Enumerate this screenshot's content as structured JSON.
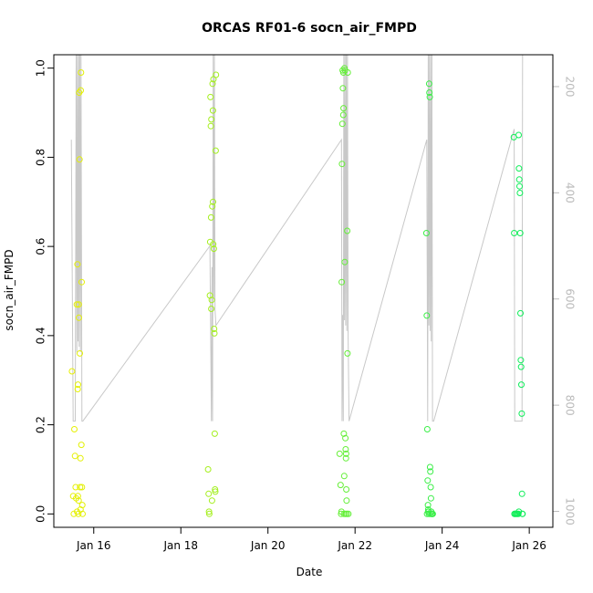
{
  "chart_data": {
    "type": "scatter",
    "title": "ORCAS RF01-6 socn_air_FMPD",
    "xlabel": "Date",
    "ylabel": "socn_air_FMPD",
    "xlim": [
      "2016-01-15T02:00",
      "2016-01-26T13:00"
    ],
    "ylim": [
      -0.03,
      1.03
    ],
    "x_ticks": [
      {
        "date": "2016-01-16T00:00",
        "label": "Jan 16"
      },
      {
        "date": "2016-01-18T00:00",
        "label": "Jan 18"
      },
      {
        "date": "2016-01-20T00:00",
        "label": "Jan 20"
      },
      {
        "date": "2016-01-22T00:00",
        "label": "Jan 22"
      },
      {
        "date": "2016-01-24T00:00",
        "label": "Jan 24"
      },
      {
        "date": "2016-01-26T00:00",
        "label": "Jan 26"
      }
    ],
    "y_ticks": [
      {
        "value": 0.0,
        "label": "0.0"
      },
      {
        "value": 0.2,
        "label": "0.2"
      },
      {
        "value": 0.4,
        "label": "0.4"
      },
      {
        "value": 0.6,
        "label": "0.6"
      },
      {
        "value": 0.8,
        "label": "0.8"
      },
      {
        "value": 1.0,
        "label": "1.0"
      }
    ],
    "secondary_axis": {
      "side": "right",
      "color": "#bbbbbb",
      "range": [
        1030,
        140
      ],
      "ticks": [
        {
          "value": 200,
          "label": "200"
        },
        {
          "value": 400,
          "label": "400"
        },
        {
          "value": 600,
          "label": "600"
        },
        {
          "value": 800,
          "label": "800"
        },
        {
          "value": 1000,
          "label": "1000"
        }
      ]
    },
    "line_color": "#c8c8c8",
    "marker": "open-circle",
    "point_color_scale": [
      "#f0f000",
      "#00ee60"
    ],
    "grid": false,
    "pressure_line": [
      [
        "2016-01-15T11:40",
        300
      ],
      [
        "2016-01-15T12:40",
        830
      ],
      [
        "2016-01-15T13:50",
        830
      ],
      [
        "2016-01-15T14:20",
        140
      ],
      [
        "2016-01-15T14:40",
        700
      ],
      [
        "2016-01-15T15:00",
        140
      ],
      [
        "2016-01-15T15:20",
        680
      ],
      [
        "2016-01-15T15:40",
        140
      ],
      [
        "2016-01-15T16:00",
        690
      ],
      [
        "2016-01-15T16:20",
        140
      ],
      [
        "2016-01-15T16:40",
        700
      ],
      [
        "2016-01-15T17:00",
        140
      ],
      [
        "2016-01-15T17:30",
        830
      ],
      [
        "2016-01-15T18:00",
        830
      ],
      [
        "2016-01-18T16:00",
        500
      ],
      [
        "2016-01-18T16:50",
        830
      ],
      [
        "2016-01-18T17:10",
        540
      ],
      [
        "2016-01-18T17:30",
        830
      ],
      [
        "2016-01-18T17:50",
        140
      ],
      [
        "2016-01-18T18:10",
        600
      ],
      [
        "2016-01-18T18:30",
        140
      ],
      [
        "2016-01-18T18:50",
        620
      ],
      [
        "2016-01-18T19:20",
        650
      ],
      [
        "2016-01-21T16:30",
        300
      ],
      [
        "2016-01-21T16:50",
        830
      ],
      [
        "2016-01-21T17:10",
        630
      ],
      [
        "2016-01-21T17:30",
        830
      ],
      [
        "2016-01-21T17:50",
        140
      ],
      [
        "2016-01-21T18:10",
        640
      ],
      [
        "2016-01-21T18:30",
        140
      ],
      [
        "2016-01-21T18:50",
        650
      ],
      [
        "2016-01-21T19:10",
        140
      ],
      [
        "2016-01-21T19:30",
        660
      ],
      [
        "2016-01-21T19:50",
        140
      ],
      [
        "2016-01-21T20:10",
        670
      ],
      [
        "2016-01-21T20:40",
        830
      ],
      [
        "2016-01-23T15:30",
        300
      ],
      [
        "2016-01-23T16:00",
        830
      ],
      [
        "2016-01-23T16:20",
        140
      ],
      [
        "2016-01-23T16:40",
        650
      ],
      [
        "2016-01-23T17:00",
        140
      ],
      [
        "2016-01-23T17:20",
        660
      ],
      [
        "2016-01-23T17:40",
        140
      ],
      [
        "2016-01-23T18:00",
        680
      ],
      [
        "2016-01-23T18:20",
        140
      ],
      [
        "2016-01-23T18:40",
        830
      ],
      [
        "2016-01-23T19:20",
        830
      ],
      [
        "2016-01-25T15:40",
        280
      ],
      [
        "2016-01-25T16:00",
        830
      ],
      [
        "2016-01-25T20:00",
        830
      ],
      [
        "2016-01-25T20:20",
        140
      ]
    ],
    "points": [
      [
        "2016-01-15T12:00",
        0.32
      ],
      [
        "2016-01-15T12:40",
        0.04
      ],
      [
        "2016-01-15T13:00",
        0.0
      ],
      [
        "2016-01-15T13:20",
        0.19
      ],
      [
        "2016-01-15T13:40",
        0.13
      ],
      [
        "2016-01-15T14:00",
        0.06
      ],
      [
        "2016-01-15T14:20",
        0.035
      ],
      [
        "2016-01-15T14:40",
        0.47
      ],
      [
        "2016-01-15T15:00",
        0.56
      ],
      [
        "2016-01-15T15:10",
        0.28
      ],
      [
        "2016-01-15T15:20",
        0.29
      ],
      [
        "2016-01-15T15:30",
        0.0
      ],
      [
        "2016-01-15T15:40",
        0.03
      ],
      [
        "2016-01-15T15:50",
        0.44
      ],
      [
        "2016-01-15T16:00",
        0.945
      ],
      [
        "2016-01-15T16:10",
        0.795
      ],
      [
        "2016-01-15T16:20",
        0.36
      ],
      [
        "2016-01-15T16:30",
        0.06
      ],
      [
        "2016-01-15T16:40",
        0.125
      ],
      [
        "2016-01-15T16:50",
        0.95
      ],
      [
        "2016-01-15T17:00",
        0.99
      ],
      [
        "2016-01-15T17:10",
        0.155
      ],
      [
        "2016-01-15T17:20",
        0.52
      ],
      [
        "2016-01-15T17:30",
        0.06
      ],
      [
        "2016-01-15T17:40",
        0.02
      ],
      [
        "2016-01-15T17:50",
        0.0
      ],
      [
        "2016-01-15T14:50",
        0.005
      ],
      [
        "2016-01-15T16:45",
        0.01
      ],
      [
        "2016-01-15T15:15",
        0.04
      ],
      [
        "2016-01-15T15:45",
        0.47
      ],
      [
        "2016-01-18T15:00",
        0.1
      ],
      [
        "2016-01-18T15:20",
        0.045
      ],
      [
        "2016-01-18T15:40",
        0.0
      ],
      [
        "2016-01-18T16:00",
        0.49
      ],
      [
        "2016-01-18T16:10",
        0.61
      ],
      [
        "2016-01-18T16:20",
        0.935
      ],
      [
        "2016-01-18T16:30",
        0.87
      ],
      [
        "2016-01-18T16:40",
        0.665
      ],
      [
        "2016-01-18T16:50",
        0.885
      ],
      [
        "2016-01-18T17:00",
        0.48
      ],
      [
        "2016-01-18T17:10",
        0.03
      ],
      [
        "2016-01-18T17:20",
        0.69
      ],
      [
        "2016-01-18T17:30",
        0.965
      ],
      [
        "2016-01-18T17:40",
        0.905
      ],
      [
        "2016-01-18T17:50",
        0.605
      ],
      [
        "2016-01-18T18:00",
        0.975
      ],
      [
        "2016-01-18T18:10",
        0.595
      ],
      [
        "2016-01-18T18:20",
        0.415
      ],
      [
        "2016-01-18T18:30",
        0.405
      ],
      [
        "2016-01-18T18:40",
        0.18
      ],
      [
        "2016-01-18T18:50",
        0.055
      ],
      [
        "2016-01-18T19:00",
        0.05
      ],
      [
        "2016-01-18T19:10",
        0.815
      ],
      [
        "2016-01-18T19:20",
        0.985
      ],
      [
        "2016-01-18T16:45",
        0.46
      ],
      [
        "2016-01-18T17:45",
        0.7
      ],
      [
        "2016-01-18T15:30",
        0.005
      ],
      [
        "2016-01-21T15:30",
        0.135
      ],
      [
        "2016-01-21T16:00",
        0.065
      ],
      [
        "2016-01-21T16:20",
        0.0
      ],
      [
        "2016-01-21T16:40",
        0.52
      ],
      [
        "2016-01-21T16:50",
        0.785
      ],
      [
        "2016-01-21T17:00",
        0.875
      ],
      [
        "2016-01-21T17:10",
        0.995
      ],
      [
        "2016-01-21T17:20",
        0.955
      ],
      [
        "2016-01-21T17:30",
        0.895
      ],
      [
        "2016-01-21T17:40",
        0.91
      ],
      [
        "2016-01-21T17:50",
        0.18
      ],
      [
        "2016-01-21T18:00",
        0.085
      ],
      [
        "2016-01-21T18:10",
        1.0
      ],
      [
        "2016-01-21T18:20",
        0.565
      ],
      [
        "2016-01-21T18:30",
        0.995
      ],
      [
        "2016-01-21T18:40",
        0.17
      ],
      [
        "2016-01-21T18:50",
        0.145
      ],
      [
        "2016-01-21T19:00",
        0.125
      ],
      [
        "2016-01-21T19:10",
        0.055
      ],
      [
        "2016-01-21T19:20",
        0.03
      ],
      [
        "2016-01-21T19:30",
        0.0
      ],
      [
        "2016-01-21T19:40",
        0.635
      ],
      [
        "2016-01-21T19:50",
        0.36
      ],
      [
        "2016-01-21T20:00",
        0.99
      ],
      [
        "2016-01-21T16:30",
        0.005
      ],
      [
        "2016-01-21T18:45",
        0.0
      ],
      [
        "2016-01-21T17:55",
        0.0
      ],
      [
        "2016-01-21T19:05",
        0.135
      ],
      [
        "2016-01-21T20:20",
        0.0
      ],
      [
        "2016-01-21T17:35",
        0.99
      ],
      [
        "2016-01-23T15:20",
        0.63
      ],
      [
        "2016-01-23T15:30",
        0.445
      ],
      [
        "2016-01-23T15:40",
        0.0
      ],
      [
        "2016-01-23T15:50",
        0.19
      ],
      [
        "2016-01-23T16:00",
        0.075
      ],
      [
        "2016-01-23T16:10",
        0.02
      ],
      [
        "2016-01-23T16:20",
        0.01
      ],
      [
        "2016-01-23T16:30",
        0.005
      ],
      [
        "2016-01-23T16:40",
        0.0
      ],
      [
        "2016-01-23T16:50",
        0.965
      ],
      [
        "2016-01-23T17:00",
        0.945
      ],
      [
        "2016-01-23T17:10",
        0.935
      ],
      [
        "2016-01-23T17:20",
        0.105
      ],
      [
        "2016-01-23T17:30",
        0.095
      ],
      [
        "2016-01-23T17:40",
        0.06
      ],
      [
        "2016-01-23T17:50",
        0.035
      ],
      [
        "2016-01-23T18:00",
        0.005
      ],
      [
        "2016-01-23T18:10",
        0.0
      ],
      [
        "2016-01-23T18:20",
        0.0
      ],
      [
        "2016-01-23T18:30",
        0.0
      ],
      [
        "2016-01-23T18:40",
        0.0
      ],
      [
        "2016-01-23T18:50",
        0.0
      ],
      [
        "2016-01-23T16:15",
        0.005
      ],
      [
        "2016-01-23T17:25",
        0.0
      ],
      [
        "2016-01-25T15:30",
        0.845
      ],
      [
        "2016-01-25T15:40",
        0.63
      ],
      [
        "2016-01-25T15:50",
        0.0
      ],
      [
        "2016-01-25T16:00",
        0.0
      ],
      [
        "2016-01-25T16:30",
        0.0
      ],
      [
        "2016-01-25T17:00",
        0.0
      ],
      [
        "2016-01-25T17:30",
        0.0
      ],
      [
        "2016-01-25T18:00",
        0.0
      ],
      [
        "2016-01-25T18:10",
        0.85
      ],
      [
        "2016-01-25T18:20",
        0.775
      ],
      [
        "2016-01-25T18:30",
        0.75
      ],
      [
        "2016-01-25T18:40",
        0.735
      ],
      [
        "2016-01-25T18:50",
        0.72
      ],
      [
        "2016-01-25T19:00",
        0.63
      ],
      [
        "2016-01-25T19:10",
        0.45
      ],
      [
        "2016-01-25T19:20",
        0.345
      ],
      [
        "2016-01-25T19:30",
        0.33
      ],
      [
        "2016-01-25T19:40",
        0.29
      ],
      [
        "2016-01-25T19:50",
        0.225
      ],
      [
        "2016-01-25T20:00",
        0.045
      ],
      [
        "2016-01-25T20:10",
        0.0
      ],
      [
        "2016-01-25T20:20",
        0.0
      ],
      [
        "2016-01-25T18:15",
        0.005
      ]
    ]
  }
}
